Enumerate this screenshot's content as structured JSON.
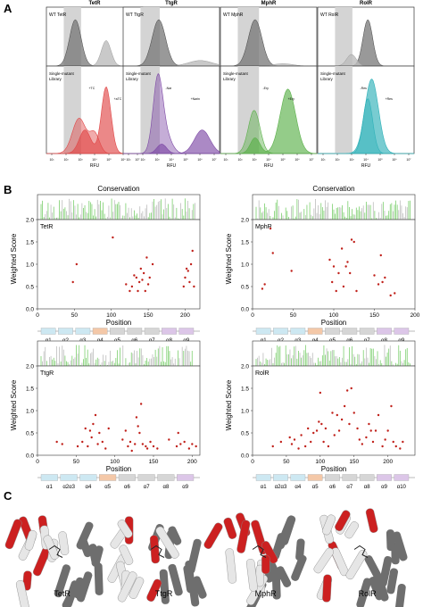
{
  "panel_labels": [
    "A",
    "B",
    "C"
  ],
  "panelA": {
    "wt_prefix": "WT",
    "library_label_line1": "Single-mutant",
    "library_label_line2": "Library",
    "xlabel": "RFU",
    "ticks": [
      "10¹",
      "10²",
      "10³",
      "10⁴",
      "10⁵",
      "10⁶",
      "10⁷"
    ],
    "colors": {
      "tetr": "#e04848",
      "ttgr": "#7e4aa6",
      "mphr": "#5bb04a",
      "rolr": "#2fb1b8",
      "wt": "#555555"
    },
    "proteins": [
      {
        "name": "TetR",
        "library_annot": [
          "+TC",
          "+aTC"
        ]
      },
      {
        "name": "TtgR",
        "library_annot": [
          "-Nar",
          "+Narin"
        ]
      },
      {
        "name": "MphR",
        "library_annot": [
          "-Ery",
          "+Ery"
        ]
      },
      {
        "name": "RolR",
        "library_annot": [
          "-Res",
          "+Res"
        ]
      }
    ]
  },
  "chart_data": [
    {
      "type": "scatter",
      "protein": "TetR",
      "title": "Conservation",
      "xlabel": "Position",
      "ylabel": "Weighted Score",
      "xlim": [
        0,
        220
      ],
      "ylim": [
        0,
        2.0
      ],
      "xticks": [
        0,
        50,
        100,
        150,
        200
      ],
      "yticks": [
        0,
        0.5,
        1.0,
        1.5,
        2.0
      ],
      "points": [
        [
          48,
          0.6
        ],
        [
          53,
          1.0
        ],
        [
          102,
          1.6
        ],
        [
          120,
          0.55
        ],
        [
          125,
          0.4
        ],
        [
          128,
          0.5
        ],
        [
          131,
          0.75
        ],
        [
          134,
          0.7
        ],
        [
          136,
          0.4
        ],
        [
          138,
          0.6
        ],
        [
          140,
          0.9
        ],
        [
          142,
          0.65
        ],
        [
          144,
          0.8
        ],
        [
          146,
          0.4
        ],
        [
          148,
          1.15
        ],
        [
          150,
          0.55
        ],
        [
          152,
          0.7
        ],
        [
          156,
          1.0
        ],
        [
          198,
          0.5
        ],
        [
          200,
          0.7
        ],
        [
          202,
          0.9
        ],
        [
          204,
          0.85
        ],
        [
          206,
          0.6
        ],
        [
          208,
          1.0
        ],
        [
          210,
          1.3
        ],
        [
          212,
          0.5
        ]
      ],
      "helices": [
        "α1",
        "α2",
        "α3",
        "α4",
        "α5",
        "α6",
        "α7",
        "α8",
        "α9"
      ]
    },
    {
      "type": "scatter",
      "protein": "MphR",
      "title": "Conservation",
      "xlabel": "Position",
      "ylabel": "Weighted Score",
      "xlim": [
        0,
        200
      ],
      "ylim": [
        0,
        2.0
      ],
      "xticks": [
        0,
        50,
        100,
        150,
        200
      ],
      "yticks": [
        0,
        0.5,
        1.0,
        1.5,
        2.0
      ],
      "points": [
        [
          12,
          0.45
        ],
        [
          15,
          0.55
        ],
        [
          22,
          1.8
        ],
        [
          25,
          1.25
        ],
        [
          48,
          0.85
        ],
        [
          95,
          1.1
        ],
        [
          98,
          0.6
        ],
        [
          100,
          0.95
        ],
        [
          103,
          0.4
        ],
        [
          106,
          0.8
        ],
        [
          110,
          1.35
        ],
        [
          112,
          0.5
        ],
        [
          115,
          0.95
        ],
        [
          117,
          1.05
        ],
        [
          120,
          0.8
        ],
        [
          122,
          1.55
        ],
        [
          125,
          1.5
        ],
        [
          128,
          0.4
        ],
        [
          150,
          0.75
        ],
        [
          155,
          0.55
        ],
        [
          158,
          1.2
        ],
        [
          160,
          0.6
        ],
        [
          163,
          0.7
        ],
        [
          170,
          0.3
        ],
        [
          175,
          0.35
        ]
      ],
      "helices": [
        "α1",
        "α2",
        "α3",
        "α4",
        "α5",
        "α6",
        "α7",
        "α8",
        "α9"
      ]
    },
    {
      "type": "scatter",
      "protein": "TtgR",
      "title": "",
      "xlabel": "Position",
      "ylabel": "Weighted Score",
      "xlim": [
        0,
        210
      ],
      "ylim": [
        0,
        2.0
      ],
      "xticks": [
        0,
        50,
        100,
        150,
        200
      ],
      "yticks": [
        0,
        0.5,
        1.0,
        1.5,
        2.0
      ],
      "points": [
        [
          25,
          0.3
        ],
        [
          32,
          0.25
        ],
        [
          52,
          0.2
        ],
        [
          58,
          0.3
        ],
        [
          62,
          0.6
        ],
        [
          65,
          0.2
        ],
        [
          68,
          0.55
        ],
        [
          70,
          0.4
        ],
        [
          72,
          0.7
        ],
        [
          75,
          0.9
        ],
        [
          78,
          0.25
        ],
        [
          80,
          0.5
        ],
        [
          84,
          0.3
        ],
        [
          88,
          0.15
        ],
        [
          92,
          0.6
        ],
        [
          110,
          0.35
        ],
        [
          114,
          0.55
        ],
        [
          117,
          0.2
        ],
        [
          120,
          0.3
        ],
        [
          122,
          0.1
        ],
        [
          126,
          0.25
        ],
        [
          128,
          0.85
        ],
        [
          130,
          0.65
        ],
        [
          132,
          0.5
        ],
        [
          134,
          1.15
        ],
        [
          136,
          0.25
        ],
        [
          140,
          0.2
        ],
        [
          142,
          0.15
        ],
        [
          146,
          0.3
        ],
        [
          150,
          0.2
        ],
        [
          155,
          0.15
        ],
        [
          170,
          0.35
        ],
        [
          180,
          0.2
        ],
        [
          182,
          0.5
        ],
        [
          185,
          0.25
        ],
        [
          190,
          0.3
        ],
        [
          196,
          0.15
        ],
        [
          200,
          0.25
        ],
        [
          205,
          0.2
        ]
      ],
      "helices": [
        "α1",
        "α2α3",
        "α4",
        "α5",
        "α6",
        "α7",
        "α8",
        "α9"
      ]
    },
    {
      "type": "scatter",
      "protein": "RolR",
      "title": "",
      "xlabel": "Position",
      "ylabel": "Weighted Score",
      "xlim": [
        0,
        240
      ],
      "ylim": [
        0,
        2.0
      ],
      "xticks": [
        0,
        50,
        100,
        150,
        200
      ],
      "yticks": [
        0,
        0.5,
        1.0,
        1.5,
        2.0
      ],
      "points": [
        [
          30,
          0.2
        ],
        [
          42,
          0.3
        ],
        [
          55,
          0.4
        ],
        [
          58,
          0.25
        ],
        [
          62,
          0.35
        ],
        [
          68,
          0.15
        ],
        [
          72,
          0.45
        ],
        [
          78,
          0.2
        ],
        [
          82,
          0.6
        ],
        [
          86,
          0.3
        ],
        [
          90,
          0.5
        ],
        [
          95,
          0.55
        ],
        [
          98,
          0.75
        ],
        [
          100,
          1.4
        ],
        [
          102,
          0.7
        ],
        [
          105,
          0.3
        ],
        [
          108,
          0.6
        ],
        [
          112,
          0.2
        ],
        [
          118,
          0.95
        ],
        [
          121,
          0.45
        ],
        [
          125,
          0.9
        ],
        [
          128,
          0.55
        ],
        [
          132,
          0.8
        ],
        [
          136,
          1.1
        ],
        [
          140,
          1.45
        ],
        [
          143,
          0.7
        ],
        [
          146,
          1.5
        ],
        [
          150,
          0.95
        ],
        [
          155,
          0.6
        ],
        [
          158,
          0.35
        ],
        [
          162,
          0.25
        ],
        [
          168,
          0.4
        ],
        [
          172,
          0.7
        ],
        [
          175,
          0.55
        ],
        [
          178,
          0.3
        ],
        [
          182,
          0.55
        ],
        [
          186,
          0.9
        ],
        [
          192,
          0.2
        ],
        [
          196,
          0.35
        ],
        [
          200,
          0.55
        ],
        [
          205,
          1.1
        ],
        [
          208,
          0.3
        ],
        [
          212,
          0.2
        ],
        [
          218,
          0.15
        ],
        [
          222,
          0.3
        ]
      ],
      "helices": [
        "α1",
        "α2α3",
        "α4",
        "α5",
        "α6",
        "α7",
        "α8",
        "α9",
        "α10"
      ]
    }
  ],
  "panelC": {
    "structures": [
      "TetR",
      "TtgR",
      "MphR",
      "RolR"
    ],
    "colors": {
      "helix": "#e6e6e6",
      "dimer": "#6e6e6e",
      "hot": "#cc2020",
      "ligand": "#222222"
    }
  }
}
